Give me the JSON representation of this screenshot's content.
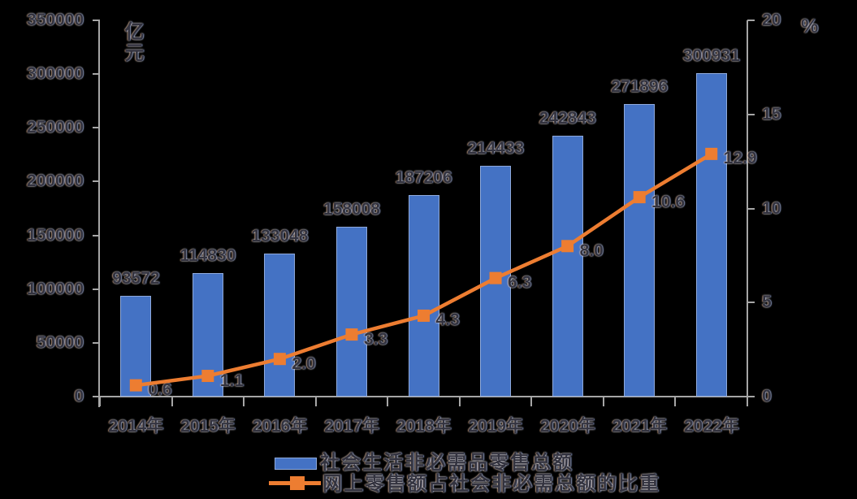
{
  "chart_data": {
    "type": "combo-bar-line",
    "title": "",
    "categories": [
      "2014年",
      "2015年",
      "2016年",
      "2017年",
      "2018年",
      "2019年",
      "2020年",
      "2021年",
      "2022年"
    ],
    "series": [
      {
        "name": "社会生活非必需品零售总额",
        "type": "bar",
        "axis": "left",
        "color": "#4472C4",
        "values": [
          93572,
          114830,
          133048,
          158008,
          187206,
          214433,
          242843,
          271896,
          300931
        ],
        "labels": [
          "93572",
          "114830",
          "133048",
          "158008",
          "187206",
          "214433",
          "242843",
          "271896",
          "300931"
        ]
      },
      {
        "name": "网上零售额占社会非必需总额的比重",
        "type": "line",
        "axis": "right",
        "color": "#ED7D31",
        "marker": "square",
        "values": [
          0.6,
          1.1,
          2.0,
          3.3,
          4.3,
          6.3,
          8.0,
          10.6,
          12.9
        ],
        "labels": [
          "0.6",
          "1.1",
          "2.0",
          "3.3",
          "4.3",
          "6.3",
          "8.0",
          "10.6",
          "12.9"
        ]
      }
    ],
    "left_axis": {
      "unit": "亿元",
      "min": 0,
      "max": 350000,
      "step": 50000,
      "tick_labels": [
        "0",
        "50000",
        "100000",
        "150000",
        "200000",
        "250000",
        "300000",
        "350000"
      ]
    },
    "right_axis": {
      "unit": "%",
      "min": 0,
      "max": 20,
      "step": 5,
      "tick_labels": [
        "0",
        "5",
        "10",
        "15",
        "20"
      ]
    },
    "legend_position": "bottom",
    "grid": false,
    "colors": {
      "bar": "#4472C4",
      "line": "#ED7D31",
      "axis": "#A6A6A6",
      "text": "#33333F"
    }
  }
}
